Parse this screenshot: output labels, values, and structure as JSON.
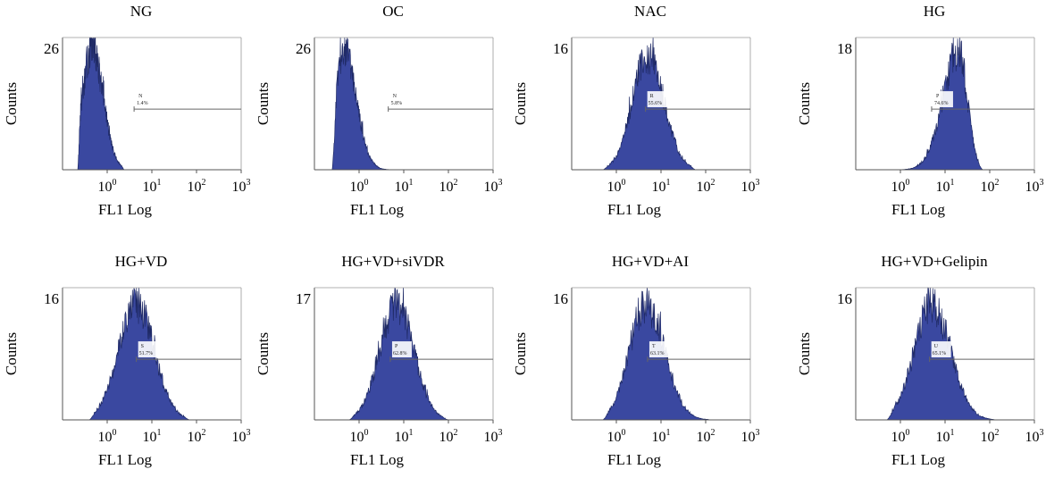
{
  "colors": {
    "fill": "#3a48a0",
    "edge": "#1f2a66",
    "axis": "#555555",
    "gate": "#666666",
    "label_bg": "#ffffff"
  },
  "chart_data": [
    {
      "type": "histogram",
      "title": "NG",
      "ymax_label": "26",
      "ymax": 26,
      "ylabel": "Counts",
      "xlabel": "FL1 Log",
      "xscale": "log",
      "xlim": [
        0.1,
        1000
      ],
      "xticks": [
        "10^0",
        "10^1",
        "10^2",
        "10^3"
      ],
      "gate": {
        "label": "N",
        "percent": "1.4%",
        "x_start": 4,
        "level_fraction": 0.46
      },
      "distribution": {
        "mode": 0.45,
        "log_sd": 0.22,
        "skew": 0.15,
        "lo": 0.22,
        "hi": 2.4,
        "peak": 0.98
      }
    },
    {
      "type": "histogram",
      "title": "OC",
      "ymax_label": "26",
      "ymax": 26,
      "ylabel": "Counts",
      "xlabel": "FL1 Log",
      "xscale": "log",
      "xlim": [
        0.1,
        1000
      ],
      "xticks": [
        "10^0",
        "10^1",
        "10^2",
        "10^3"
      ],
      "gate": {
        "label": "N",
        "percent": "5.8%",
        "x_start": 4.5,
        "level_fraction": 0.46
      },
      "distribution": {
        "mode": 0.45,
        "log_sd": 0.2,
        "skew": 0.4,
        "lo": 0.25,
        "hi": 10,
        "peak": 0.98
      }
    },
    {
      "type": "histogram",
      "title": "NAC",
      "ymax_label": "16",
      "ymax": 16,
      "ylabel": "Counts",
      "xlabel": "FL1 Log",
      "xscale": "log",
      "xlim": [
        0.1,
        1000
      ],
      "xticks": [
        "10^0",
        "10^1",
        "10^2",
        "10^3"
      ],
      "gate": {
        "label": "R",
        "percent": "55.6%",
        "x_start": 4.5,
        "level_fraction": 0.46
      },
      "distribution": {
        "mode": 5,
        "log_sd": 0.35,
        "skew": 0.05,
        "lo": 0.5,
        "hi": 60,
        "peak": 0.92
      }
    },
    {
      "type": "histogram",
      "title": "HG",
      "ymax_label": "18",
      "ymax": 18,
      "ylabel": "Counts",
      "xlabel": "FL1 Log",
      "xscale": "log",
      "xlim": [
        0.1,
        1000
      ],
      "xticks": [
        "10^0",
        "10^1",
        "10^2",
        "10^3"
      ],
      "gate": {
        "label": "P",
        "percent": "74.6%",
        "x_start": 5,
        "level_fraction": 0.46
      },
      "distribution": {
        "mode": 20,
        "log_sd": 0.3,
        "skew": -0.35,
        "lo": 0.8,
        "hi": 70,
        "peak": 0.95
      }
    },
    {
      "type": "histogram",
      "title": "HG+VD",
      "ymax_label": "16",
      "ymax": 16,
      "ylabel": "Counts",
      "xlabel": "FL1 Log",
      "xscale": "log",
      "xlim": [
        0.1,
        1000
      ],
      "xticks": [
        "10^0",
        "10^1",
        "10^2",
        "10^3"
      ],
      "gate": {
        "label": "S",
        "percent": "51.7%",
        "x_start": 4.5,
        "level_fraction": 0.46
      },
      "distribution": {
        "mode": 4.5,
        "log_sd": 0.4,
        "skew": 0.0,
        "lo": 0.4,
        "hi": 70,
        "peak": 0.93
      }
    },
    {
      "type": "histogram",
      "title": "HG+VD+siVDR",
      "ymax_label": "17",
      "ymax": 17,
      "ylabel": "Counts",
      "xlabel": "FL1 Log",
      "xscale": "log",
      "xlim": [
        0.1,
        1000
      ],
      "xticks": [
        "10^0",
        "10^1",
        "10^2",
        "10^3"
      ],
      "gate": {
        "label": "P",
        "percent": "62.8%",
        "x_start": 5,
        "level_fraction": 0.46
      },
      "distribution": {
        "mode": 7,
        "log_sd": 0.38,
        "skew": 0.0,
        "lo": 0.6,
        "hi": 100,
        "peak": 0.93
      }
    },
    {
      "type": "histogram",
      "title": "HG+VD+AI",
      "ymax_label": "16",
      "ymax": 16,
      "ylabel": "Counts",
      "xlabel": "FL1 Log",
      "xscale": "log",
      "xlim": [
        0.1,
        1000
      ],
      "xticks": [
        "10^0",
        "10^1",
        "10^2",
        "10^3"
      ],
      "gate": {
        "label": "T",
        "percent": "63.1%",
        "x_start": 5,
        "level_fraction": 0.46
      },
      "distribution": {
        "mode": 4.5,
        "log_sd": 0.38,
        "skew": 0.1,
        "lo": 0.5,
        "hi": 150,
        "peak": 0.93
      }
    },
    {
      "type": "histogram",
      "title": "HG+VD+Gelipin",
      "ymax_label": "16",
      "ymax": 16,
      "ylabel": "Counts",
      "xlabel": "FL1 Log",
      "xscale": "log",
      "xlim": [
        0.1,
        1000
      ],
      "xticks": [
        "10^0",
        "10^1",
        "10^2",
        "10^3"
      ],
      "gate": {
        "label": "U",
        "percent": "65.1%",
        "x_start": 4.5,
        "level_fraction": 0.46
      },
      "distribution": {
        "mode": 5,
        "log_sd": 0.4,
        "skew": 0.05,
        "lo": 0.5,
        "hi": 150,
        "peak": 0.93
      }
    }
  ]
}
